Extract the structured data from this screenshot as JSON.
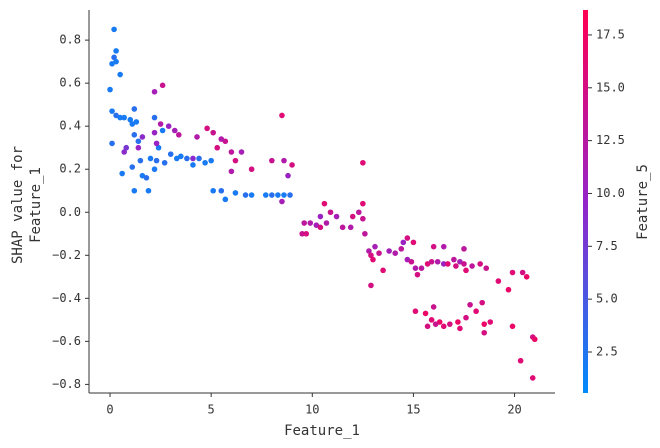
{
  "chart_data": {
    "type": "scatter",
    "xlabel": "Feature_1",
    "ylabel": [
      "SHAP value for",
      "Feature_1"
    ],
    "colorbar_label": "Feature_5",
    "colormap": [
      "#008bfb",
      "#9524c8",
      "#ff0052"
    ],
    "xlim": [
      -1.04,
      22.0
    ],
    "ylim": [
      -0.84,
      0.94
    ],
    "clim": [
      0.56,
      18.68
    ],
    "xticks": [
      0,
      5,
      10,
      15,
      20
    ],
    "yticks": [
      {
        "value": 0.8,
        "label": "0.8"
      },
      {
        "value": 0.6,
        "label": "0.6"
      },
      {
        "value": 0.4,
        "label": "0.4"
      },
      {
        "value": 0.2,
        "label": "0.2"
      },
      {
        "value": 0,
        "label": "0.0"
      },
      {
        "value": -0.2,
        "label": "−0.2"
      },
      {
        "value": -0.4,
        "label": "−0.4"
      },
      {
        "value": -0.6,
        "label": "−0.6"
      },
      {
        "value": -0.8,
        "label": "−0.8"
      }
    ],
    "cticks": [
      2.5,
      {
        "value": 5,
        "label": "5.0"
      },
      7.5,
      {
        "value": 10,
        "label": "10.0"
      },
      12.5,
      {
        "value": 15,
        "label": "15.0"
      },
      17.5
    ],
    "x": [
      0.2,
      0.3,
      0.1,
      0.2,
      0.3,
      0.5,
      0.0,
      0.1,
      0.3,
      0.5,
      0.7,
      0.1,
      0.6,
      1.0,
      1.2,
      1.1,
      1.3,
      1.2,
      1.4,
      1.2,
      1.6,
      1.8,
      1.9,
      2.0,
      2.2,
      2.3,
      2.4,
      2.7,
      3.0,
      3.3,
      3.5,
      3.8,
      4.1,
      4.4,
      4.7,
      5.0,
      5.1,
      5.5,
      5.7,
      6.2,
      6.7,
      7.0,
      7.7,
      8.0,
      8.3,
      8.6,
      8.9,
      2.2,
      2.6,
      1.5,
      1.1,
      0.7,
      0.8,
      1.4,
      1.6,
      2.2,
      2.6,
      2.2,
      2.5,
      2.9,
      3.2,
      3.4,
      4.3,
      4.8,
      5.1,
      5.3,
      5.7,
      6.0,
      6.2,
      6.0,
      6.5,
      7.0,
      8.0,
      8.5,
      8.6,
      8.8,
      9.0,
      8.5,
      5.5,
      4.1,
      2.3,
      9.5,
      9.7,
      9.6,
      9.9,
      10.2,
      10.4,
      10.6,
      10.7,
      10.4,
      10.9,
      11.2,
      11.5,
      11.9,
      12.0,
      12.3,
      12.5,
      12.5,
      12.6,
      12.5,
      12.8,
      12.9,
      13.0,
      13.1,
      13.3,
      12.9,
      13.5,
      13.8,
      14.1,
      14.4,
      14.5,
      14.7,
      15.0,
      14.7,
      14.9,
      15.1,
      15.2,
      15.4,
      15.7,
      15.9,
      16.0,
      16.2,
      16.5,
      16.7,
      17.0,
      17.1,
      17.3,
      17.5,
      17.6,
      17.9,
      18.3,
      18.6,
      19.2,
      19.7,
      19.9,
      20.4,
      20.6,
      17.5,
      16.5,
      15.1,
      15.6,
      15.7,
      15.9,
      16.0,
      16.3,
      16.5,
      16.8,
      17.2,
      17.3,
      17.6,
      17.8,
      18.1,
      18.5,
      18.5,
      18.8,
      19.9,
      20.3,
      20.9,
      21.0,
      20.9,
      18.4,
      16.1
    ],
    "values": [
      0.85,
      0.75,
      0.69,
      0.72,
      0.7,
      0.64,
      0.57,
      0.47,
      0.45,
      0.44,
      0.44,
      0.32,
      0.18,
      0.43,
      0.48,
      0.41,
      0.42,
      0.36,
      0.33,
      0.1,
      0.17,
      0.16,
      0.1,
      0.25,
      0.2,
      0.24,
      0.3,
      0.23,
      0.27,
      0.25,
      0.26,
      0.25,
      0.22,
      0.25,
      0.23,
      0.24,
      0.1,
      0.1,
      0.06,
      0.09,
      0.08,
      0.08,
      0.08,
      0.08,
      0.08,
      0.08,
      0.08,
      0.44,
      0.38,
      0.24,
      0.21,
      0.28,
      0.3,
      0.3,
      0.35,
      0.56,
      0.59,
      0.37,
      0.41,
      0.4,
      0.38,
      0.36,
      0.35,
      0.39,
      0.37,
      0.3,
      0.33,
      0.28,
      0.24,
      0.19,
      0.28,
      0.2,
      0.24,
      0.45,
      0.24,
      0.17,
      0.22,
      0.05,
      0.34,
      0.25,
      0.32,
      -0.1,
      -0.1,
      -0.05,
      -0.05,
      -0.06,
      -0.07,
      0.04,
      -0.05,
      -0.02,
      0.0,
      -0.02,
      -0.07,
      -0.07,
      -0.02,
      0.0,
      0.04,
      -0.03,
      -0.1,
      0.23,
      -0.18,
      -0.2,
      -0.22,
      -0.16,
      -0.19,
      -0.34,
      -0.27,
      -0.18,
      -0.19,
      -0.17,
      -0.14,
      -0.12,
      -0.14,
      -0.22,
      -0.23,
      -0.26,
      -0.29,
      -0.26,
      -0.24,
      -0.23,
      -0.16,
      -0.23,
      -0.24,
      -0.24,
      -0.22,
      -0.25,
      -0.23,
      -0.24,
      -0.27,
      -0.25,
      -0.24,
      -0.26,
      -0.32,
      -0.36,
      -0.28,
      -0.28,
      -0.3,
      -0.17,
      -0.16,
      -0.46,
      -0.47,
      -0.53,
      -0.5,
      -0.44,
      -0.51,
      -0.53,
      -0.52,
      -0.51,
      -0.54,
      -0.49,
      -0.43,
      -0.46,
      -0.52,
      -0.56,
      -0.51,
      -0.53,
      -0.69,
      -0.58,
      -0.59,
      -0.77,
      -0.42,
      -0.52
    ],
    "color_values": [
      2,
      2,
      2,
      3,
      2,
      2,
      2,
      2,
      3,
      2,
      2,
      3,
      2,
      2,
      3,
      2,
      2,
      3,
      3,
      2,
      2,
      3,
      2,
      2,
      2,
      3,
      2,
      3,
      3,
      2,
      2,
      3,
      2,
      3,
      2,
      2,
      2,
      3,
      2,
      2,
      3,
      2,
      2,
      3,
      2,
      2,
      3,
      3,
      2,
      3,
      3,
      9,
      8,
      10,
      9,
      11,
      14,
      10,
      12,
      10,
      11,
      13,
      12,
      15,
      14,
      15,
      14,
      13,
      15,
      12,
      11,
      15,
      14,
      16,
      12,
      10,
      15,
      11,
      12,
      9,
      10,
      14,
      15,
      13,
      12,
      11,
      15,
      16,
      12,
      10,
      14,
      11,
      13,
      12,
      15,
      13,
      16,
      14,
      13,
      16,
      12,
      15,
      16,
      11,
      14,
      15,
      16,
      11,
      12,
      13,
      10,
      15,
      16,
      11,
      14,
      12,
      15,
      13,
      16,
      14,
      15,
      12,
      10,
      16,
      13,
      15,
      11,
      14,
      16,
      13,
      15,
      14,
      16,
      17,
      16,
      15,
      17,
      13,
      12,
      16,
      17,
      15,
      16,
      14,
      17,
      16,
      15,
      17,
      16,
      15,
      14,
      16,
      17,
      15,
      16,
      17,
      16,
      15,
      17,
      16,
      15,
      14
    ]
  }
}
